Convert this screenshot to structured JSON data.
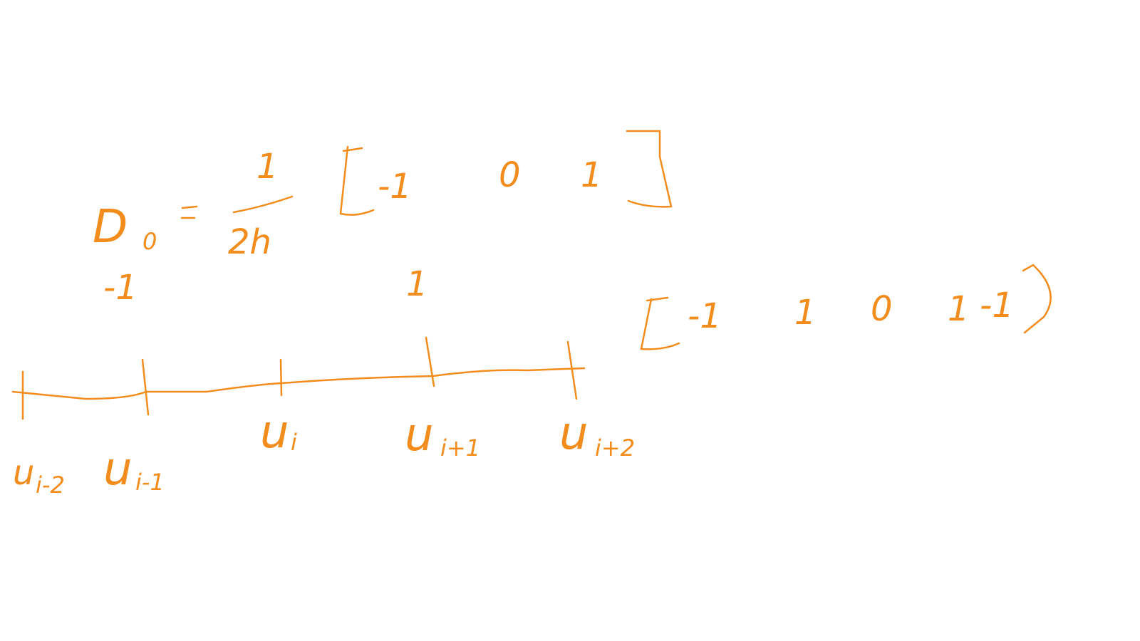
{
  "formula": {
    "operator": "D",
    "operator_subscript": "0",
    "numerator": "1",
    "denominator": "2h",
    "stencil": [
      "-1",
      "0",
      "1"
    ]
  },
  "weights": [
    "-1",
    "1"
  ],
  "stencil_2": [
    "-1",
    "1",
    "0",
    "1",
    "-1"
  ],
  "grid_points": [
    {
      "symbol": "u",
      "subscript": "i-2"
    },
    {
      "symbol": "u",
      "subscript": "i-1"
    },
    {
      "symbol": "u",
      "subscript": "i"
    },
    {
      "symbol": "u",
      "subscript": "i+1"
    },
    {
      "symbol": "u",
      "subscript": "i+2"
    }
  ]
}
